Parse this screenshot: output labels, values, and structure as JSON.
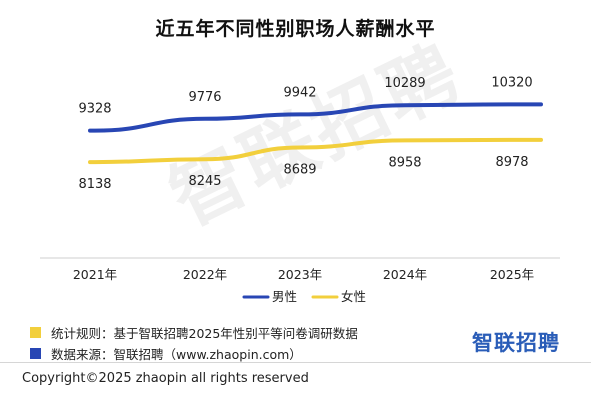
{
  "chart_data": {
    "type": "line",
    "title": "近五年不同性别职场人薪酬水平",
    "categories": [
      "2021年",
      "2022年",
      "2023年",
      "2024年",
      "2025年"
    ],
    "series": [
      {
        "name": "男性",
        "values": [
          9328,
          9776,
          9942,
          10289,
          10320
        ],
        "color": "#2846b4"
      },
      {
        "name": "女性",
        "values": [
          8138,
          8245,
          8689,
          8958,
          8978
        ],
        "color": "#f2cf3c"
      }
    ],
    "legend": "bottom",
    "grid": false
  },
  "notes": {
    "stats_rule": "统计规则：基于智联招聘2025年性别平等问卷调研数据",
    "stats_rule_color": "#f2cf3c",
    "data_source": "数据来源：智联招聘（www.zhaopin.com）",
    "data_source_color": "#2846b4"
  },
  "brand": "智联招聘",
  "watermark": "智联招聘",
  "copyright": "Copyright©2025 zhaopin all rights reserved"
}
